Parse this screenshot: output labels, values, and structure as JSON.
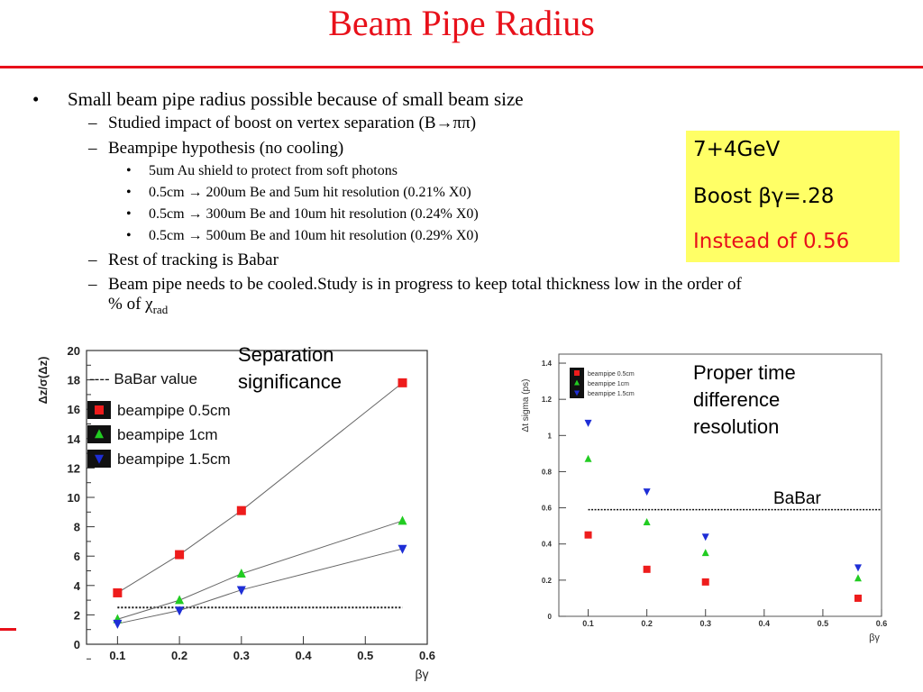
{
  "title": "Beam Pipe Radius",
  "bullets": {
    "b1": "Small beam pipe radius possible because of small beam size",
    "b1_1": "Studied impact of boost on vertex separation (B→ππ)",
    "b1_2": "Beampipe hypothesis (no cooling)",
    "b1_2_1": "5um Au shield to protect from soft photons",
    "b1_2_2": "0.5cm → 200um Be and 5um hit resolution  (0.21% X0)",
    "b1_2_3": "0.5cm → 300um Be and 10um hit resolution (0.24% X0)",
    "b1_2_4": "0.5cm → 500um Be and 10um hit resolution (0.29% X0)",
    "b1_3": "Rest of tracking is Babar",
    "b1_4_line1": "Beam pipe needs to be cooled.Study is in progress to keep total thickness low in the order of",
    "b1_4_line2": "% of χ",
    "b1_4_sub": "rad"
  },
  "note": {
    "line1": "7+4GeV",
    "line2": "Boost βγ=.28",
    "line3": "Instead of 0.56"
  },
  "colors": {
    "accent": "#e8101a",
    "note_bg": "#ffff66",
    "red": "#ee1c1c",
    "green": "#22cc22",
    "blue": "#1e2ed6"
  },
  "left_label": {
    "line1": "Separation",
    "line2": "significance"
  },
  "right_label": {
    "line1": "Proper time",
    "line2": "difference",
    "line3": "resolution",
    "babar": "BaBar"
  },
  "chart_data": [
    {
      "type": "line",
      "xlabel": "βγ",
      "ylabel": "Δz/σ(Δz)",
      "xlim": [
        0.05,
        0.6
      ],
      "ylim": [
        0,
        20
      ],
      "xticks": [
        "0.1",
        "0.2",
        "0.3",
        "0.4",
        "0.5",
        "0.6"
      ],
      "yticks": [
        "0",
        "2",
        "4",
        "6",
        "8",
        "10",
        "12",
        "14",
        "16",
        "18",
        "20"
      ],
      "x": [
        0.1,
        0.2,
        0.3,
        0.56
      ],
      "legend": {
        "babar_label": "---- BaBar value"
      },
      "babar_value": 2.5,
      "series": [
        {
          "name": "beampipe 0.5cm",
          "color": "#ee1c1c",
          "marker": "square",
          "values": [
            3.5,
            6.1,
            9.1,
            17.8
          ]
        },
        {
          "name": "beampipe 1cm",
          "color": "#22cc22",
          "marker": "triangle-up",
          "values": [
            1.7,
            3.0,
            4.8,
            8.4
          ]
        },
        {
          "name": "beampipe 1.5cm",
          "color": "#1e2ed6",
          "marker": "triangle-down",
          "values": [
            1.4,
            2.3,
            3.7,
            6.5
          ]
        }
      ]
    },
    {
      "type": "scatter",
      "xlabel": "βγ",
      "ylabel": "Δt sigma (ps)",
      "xlim": [
        0.05,
        0.6
      ],
      "ylim": [
        0,
        1.45
      ],
      "xticks": [
        "0.1",
        "0.2",
        "0.3",
        "0.4",
        "0.5",
        "0.6"
      ],
      "yticks": [
        "0",
        "0.2",
        "0.4",
        "0.6",
        "0.8",
        "1",
        "1.2",
        "1.4"
      ],
      "x": [
        0.1,
        0.2,
        0.3,
        0.56
      ],
      "babar_value": 0.59,
      "series": [
        {
          "name": "beampipe 0.5cm",
          "color": "#ee1c1c",
          "marker": "square",
          "values": [
            0.45,
            0.26,
            0.19,
            0.1
          ]
        },
        {
          "name": "beampipe 1cm",
          "color": "#22cc22",
          "marker": "triangle-up",
          "values": [
            0.87,
            0.52,
            0.35,
            0.21
          ]
        },
        {
          "name": "beampipe 1.5cm",
          "color": "#1e2ed6",
          "marker": "triangle-down",
          "values": [
            1.07,
            0.69,
            0.44,
            0.27
          ]
        }
      ]
    }
  ]
}
